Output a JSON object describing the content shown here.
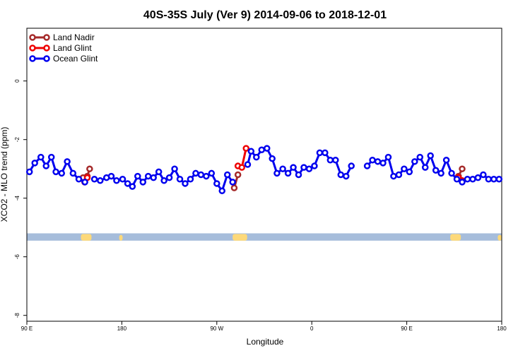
{
  "chart_data": {
    "type": "line",
    "title": "40S-35S July (Ver 9)   2014-09-06 to 2018-12-01",
    "xlabel": "Longitude",
    "ylabel": "XCO2 - MLO trend (ppm)",
    "xlim": [
      90,
      270
    ],
    "ylim": [
      -8.2,
      1.8
    ],
    "x_ticks": [
      {
        "value": 90,
        "label": "90 E"
      },
      {
        "value": 126,
        "label": "180"
      },
      {
        "value": 162,
        "label": "90 W"
      },
      {
        "value": 198,
        "label": "0"
      },
      {
        "value": 234,
        "label": "90 E"
      },
      {
        "value": 270,
        "label": "180"
      }
    ],
    "y_ticks": [
      {
        "value": 0,
        "label": "0"
      },
      {
        "value": -2,
        "label": "-2"
      },
      {
        "value": -4,
        "label": "-4"
      },
      {
        "value": -6,
        "label": "-6"
      },
      {
        "value": -8,
        "label": "-8"
      }
    ],
    "grid": false,
    "legend_position": "top-left",
    "map_strip": {
      "y_range": [
        -5.2,
        -5.45
      ],
      "ocean_color": "#a6bddb",
      "land_color": "#fdd97a"
    },
    "series": [
      {
        "name": "Land Nadir",
        "color": "#a52a2a",
        "segments": [
          [
            [
              111.3,
              -3.3
            ],
            [
              112.9,
              -3.25
            ],
            [
              113.8,
              -3.0
            ]
          ],
          [
            [
              168.6,
              -3.65
            ],
            [
              170.0,
              -3.2
            ]
          ],
          [
            [
              253.6,
              -3.25
            ],
            [
              255.0,
              -3.0
            ]
          ]
        ]
      },
      {
        "name": "Land Glint",
        "color": "#ee0000",
        "segments": [
          [
            [
              111.9,
              -3.45
            ],
            [
              112.9,
              -3.3
            ]
          ],
          [
            [
              170.0,
              -2.9
            ],
            [
              171.5,
              -2.95
            ],
            [
              173.1,
              -2.3
            ]
          ],
          [
            [
              253.6,
              -3.3
            ],
            [
              255.0,
              -3.4
            ]
          ]
        ]
      },
      {
        "name": "Ocean Glint",
        "color": "#0000ee",
        "segments": [
          [
            [
              91.0,
              -3.1
            ],
            [
              93.0,
              -2.8
            ],
            [
              95.3,
              -2.6
            ],
            [
              97.3,
              -2.9
            ],
            [
              99.3,
              -2.6
            ],
            [
              101.0,
              -3.1
            ],
            [
              103.2,
              -3.15
            ],
            [
              105.3,
              -2.75
            ],
            [
              107.5,
              -3.15
            ],
            [
              109.7,
              -3.35
            ],
            [
              112.0,
              -3.45
            ]
          ],
          [
            [
              115.6,
              -3.35
            ],
            [
              117.8,
              -3.4
            ],
            [
              120.2,
              -3.3
            ],
            [
              122.0,
              -3.25
            ],
            [
              124.0,
              -3.4
            ],
            [
              126.3,
              -3.35
            ],
            [
              128.2,
              -3.5
            ],
            [
              130.0,
              -3.6
            ],
            [
              132.0,
              -3.25
            ],
            [
              134.0,
              -3.45
            ],
            [
              136.0,
              -3.25
            ],
            [
              138.0,
              -3.3
            ],
            [
              140.0,
              -3.1
            ],
            [
              142.0,
              -3.4
            ],
            [
              144.0,
              -3.3
            ],
            [
              146.0,
              -3.0
            ],
            [
              148.0,
              -3.35
            ],
            [
              150.0,
              -3.5
            ],
            [
              152.0,
              -3.35
            ],
            [
              154.0,
              -3.15
            ],
            [
              156.0,
              -3.2
            ],
            [
              158.0,
              -3.25
            ],
            [
              160.0,
              -3.15
            ],
            [
              162.0,
              -3.5
            ],
            [
              164.0,
              -3.75
            ],
            [
              166.0,
              -3.2
            ],
            [
              168.0,
              -3.45
            ]
          ],
          [
            [
              173.7,
              -2.85
            ],
            [
              175.0,
              -2.4
            ],
            [
              177.0,
              -2.6
            ],
            [
              179.0,
              -2.35
            ],
            [
              181.0,
              -2.3
            ],
            [
              183.0,
              -2.65
            ],
            [
              184.8,
              -3.15
            ],
            [
              187.0,
              -3.0
            ],
            [
              189.0,
              -3.15
            ],
            [
              191.0,
              -2.95
            ],
            [
              193.0,
              -3.2
            ],
            [
              195.0,
              -2.95
            ],
            [
              197.0,
              -3.0
            ],
            [
              199.0,
              -2.9
            ],
            [
              201.0,
              -2.45
            ],
            [
              203.0,
              -2.45
            ],
            [
              205.0,
              -2.7
            ],
            [
              207.0,
              -2.7
            ],
            [
              209.0,
              -3.2
            ],
            [
              211.0,
              -3.25
            ],
            [
              213.0,
              -2.9
            ]
          ],
          [
            [
              219.0,
              -2.9
            ],
            [
              221.0,
              -2.7
            ],
            [
              223.0,
              -2.75
            ],
            [
              225.0,
              -2.8
            ],
            [
              227.0,
              -2.6
            ],
            [
              229.0,
              -3.25
            ],
            [
              231.0,
              -3.2
            ],
            [
              233.0,
              -3.0
            ],
            [
              235.0,
              -3.1
            ],
            [
              237.0,
              -2.75
            ],
            [
              239.0,
              -2.6
            ],
            [
              241.0,
              -2.95
            ],
            [
              243.0,
              -2.55
            ],
            [
              245.0,
              -3.05
            ],
            [
              247.0,
              -3.15
            ],
            [
              249.0,
              -2.7
            ],
            [
              251.0,
              -3.15
            ],
            [
              253.0,
              -3.35
            ],
            [
              255.0,
              -3.45
            ],
            [
              257.0,
              -3.35
            ],
            [
              259.0,
              -3.35
            ],
            [
              261.0,
              -3.3
            ],
            [
              263.0,
              -3.2
            ],
            [
              265.0,
              -3.35
            ],
            [
              267.0,
              -3.35
            ],
            [
              269.0,
              -3.35
            ]
          ]
        ]
      }
    ]
  }
}
